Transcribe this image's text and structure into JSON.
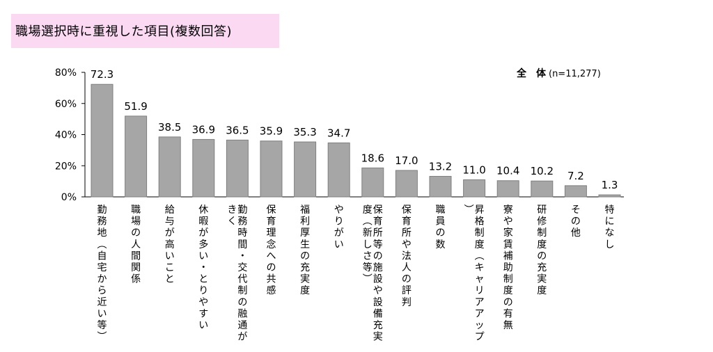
{
  "title": "職場選択時に重視した項目(複数回答)",
  "legend": {
    "label": "全　体",
    "note": "(n=11,277)"
  },
  "colors": {
    "bar": "#a6a6a6",
    "bar_stroke": "#7f7f7f",
    "title_bg": "#fbd9f3"
  },
  "chart_data": {
    "type": "bar",
    "title": "職場選択時に重視した項目(複数回答)",
    "ylabel": "",
    "xlabel": "",
    "ylim": [
      0,
      80
    ],
    "yticks": [
      "0%",
      "20%",
      "40%",
      "60%",
      "80%"
    ],
    "grid": false,
    "categories": [
      "勤務地（自宅から近い等）",
      "職場の人間関係",
      "給与が高いこと",
      "休暇が多い・とりやすい",
      "勤務時間・交代制の融通がきく",
      "保育理念への共感",
      "福利厚生の充実度",
      "やりがい",
      "保育所等の施設や設備充実度（新しさ等）",
      "保育所や法人の評判",
      "職員の数",
      "昇格制度（キャリアアップ）",
      "寮や家賃補助制度の有無",
      "研修制度の充実度",
      "その他",
      "特になし"
    ],
    "series": [
      {
        "name": "全　体",
        "values": [
          72.3,
          51.9,
          38.5,
          36.9,
          36.5,
          35.9,
          35.3,
          34.7,
          18.6,
          17.0,
          13.2,
          11.0,
          10.4,
          10.2,
          7.2,
          1.3
        ]
      }
    ],
    "value_labels": [
      "72.3",
      "51.9",
      "38.5",
      "36.9",
      "36.5",
      "35.9",
      "35.3",
      "34.7",
      "18.6",
      "17.0",
      "13.2",
      "11.0",
      "10.4",
      "10.2",
      "7.2",
      "1.3"
    ],
    "legend_position": "top-right"
  }
}
